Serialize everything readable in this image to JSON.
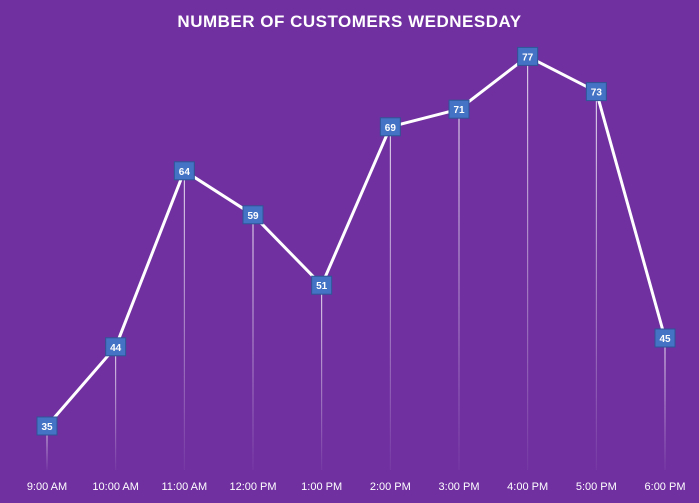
{
  "chart_data": {
    "type": "line",
    "title": "NUMBER OF CUSTOMERS WEDNESDAY",
    "categories": [
      "9:00 AM",
      "10:00 AM",
      "11:00 AM",
      "12:00 PM",
      "1:00 PM",
      "2:00 PM",
      "3:00 PM",
      "4:00 PM",
      "5:00 PM",
      "6:00 PM"
    ],
    "series": [
      {
        "values": [
          35,
          44,
          64,
          59,
          51,
          69,
          71,
          77,
          73,
          45
        ]
      }
    ],
    "xlabel": "",
    "ylabel": "",
    "ylim": [
      30,
      80
    ],
    "grid": false,
    "legend": "none",
    "drop_lines": true,
    "colors": {
      "background": "#7030a0",
      "line": "#ffffff",
      "marker_fill": "#4472c4",
      "marker_text": "#ffffff",
      "drop_line": "#ffffff"
    }
  }
}
